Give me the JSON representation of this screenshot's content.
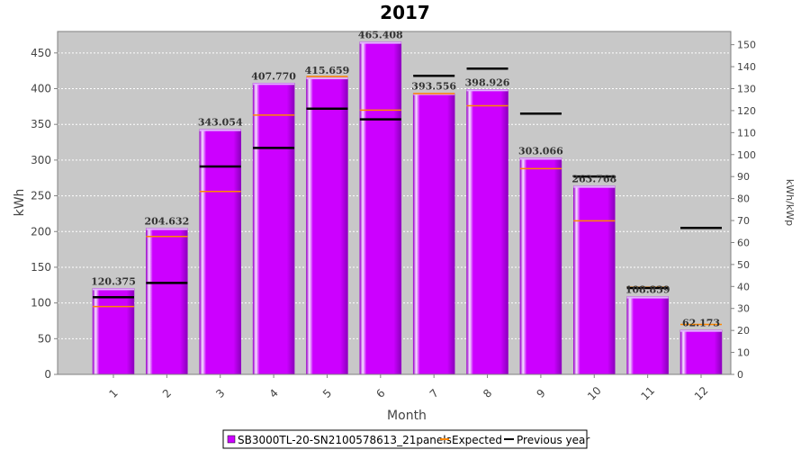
{
  "chart_data": {
    "type": "bar",
    "title": "2017",
    "xlabel": "Month",
    "ylabel": "kWh",
    "y2label": "kWh/kWp",
    "ylim": [
      0,
      480
    ],
    "y2lim": [
      0,
      156
    ],
    "yticks": [
      0,
      50,
      100,
      150,
      200,
      250,
      300,
      350,
      400,
      450
    ],
    "y2ticks": [
      0,
      10,
      20,
      30,
      40,
      50,
      60,
      70,
      80,
      90,
      100,
      110,
      120,
      130,
      140,
      150
    ],
    "grid": true,
    "legend_position": "bottom",
    "categories": [
      "1",
      "2",
      "3",
      "4",
      "5",
      "6",
      "7",
      "8",
      "9",
      "10",
      "11",
      "12"
    ],
    "series": [
      {
        "name": "SB3000TL-20-SN2100578613_21panels",
        "type": "bar",
        "color": "#cc00ff",
        "values": [
          120.375,
          204.632,
          343.054,
          407.77,
          415.659,
          465.408,
          393.556,
          398.926,
          303.066,
          263.768,
          108.839,
          62.173
        ],
        "labels": [
          "120.375",
          "204.632",
          "343.054",
          "407.770",
          "415.659",
          "465.408",
          "393.556",
          "398.926",
          "303.066",
          "263.768",
          "108.839",
          "62.173"
        ]
      },
      {
        "name": "Expected",
        "type": "marker",
        "color": "#ff8800",
        "values": [
          95,
          193,
          256,
          363,
          417,
          370,
          393,
          376,
          288,
          215,
          122,
          70
        ]
      },
      {
        "name": "Previous year",
        "type": "marker",
        "color": "#000000",
        "values": [
          108,
          128,
          291,
          317,
          372,
          357,
          418,
          428,
          365,
          277,
          121,
          205
        ]
      }
    ]
  }
}
